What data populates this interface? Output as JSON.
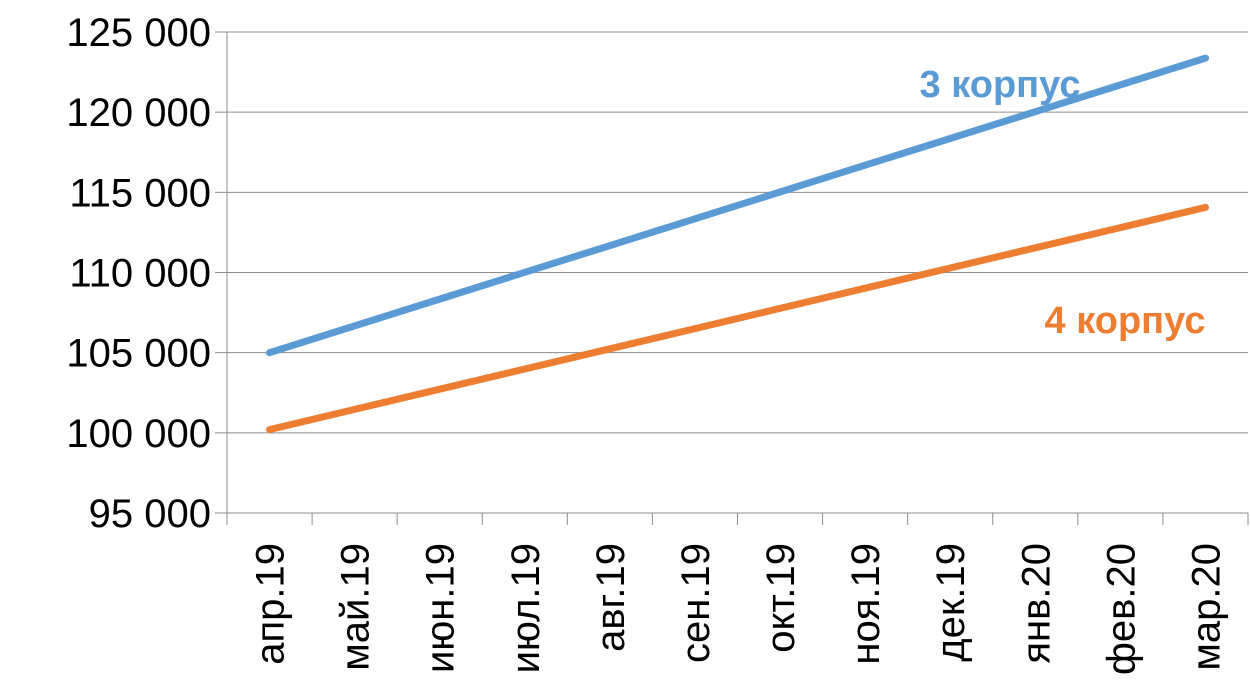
{
  "chart_data": {
    "type": "line",
    "title": "",
    "xlabel": "",
    "ylabel": "",
    "categories": [
      "апр.19",
      "май.19",
      "июн.19",
      "июл.19",
      "авг.19",
      "сен.19",
      "окт.19",
      "ноя.19",
      "дек.19",
      "янв.20",
      "фев.20",
      "мар.20"
    ],
    "y_ticks": [
      "95 000",
      "100 000",
      "105 000",
      "110 000",
      "115 000",
      "120 000",
      "125 000"
    ],
    "ylim": [
      95000,
      125000
    ],
    "grid": "horizontal",
    "legend": "inline labels",
    "series": [
      {
        "name": "3 корпус",
        "color": "#5B9BD5",
        "values": [
          105000,
          106670,
          108340,
          110010,
          111680,
          113350,
          115020,
          116690,
          118360,
          120030,
          121700,
          123370
        ]
      },
      {
        "name": "4 корпус",
        "color": "#ED7D31",
        "values": [
          100200,
          101460,
          102720,
          103980,
          105240,
          106500,
          107760,
          109020,
          110280,
          111540,
          112800,
          114060
        ]
      }
    ]
  }
}
